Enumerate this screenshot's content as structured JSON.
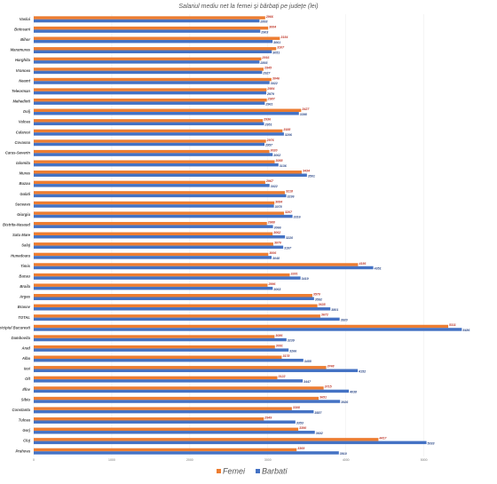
{
  "chart_data": {
    "type": "hbar",
    "title": "Salariul mediu net la femei și bărbați pe județe (lei)",
    "categories": [
      "Vaslui",
      "Botosani",
      "Bihor",
      "Maramures",
      "Harghita",
      "Vrancea",
      "Neamt",
      "Teleorman",
      "Mehedinti",
      "Dolj",
      "Valcea",
      "Calarasi",
      "Covasna",
      "Caras-Severin",
      "Ialomita",
      "Mures",
      "Buzau",
      "Galati",
      "Suceava",
      "Giurgiu",
      "Bistrita-Nasaud",
      "Satu Mare",
      "Salaj",
      "Hunedoara",
      "Timis",
      "Bacau",
      "Braila",
      "Arges",
      "Brasov",
      "TOTAL",
      "Municipiul Bucuresti",
      "Dambovita",
      "Arad",
      "Alba",
      "Iasi",
      "Olt",
      "Ilfov",
      "Sibiu",
      "Constanta",
      "Tulcea",
      "Gorj",
      "Cluj",
      "Prahova"
    ],
    "series": [
      {
        "name": "Femei",
        "color": "#ed7d31",
        "values": [
          2966,
          3004,
          3154,
          3107,
          2916,
          2945,
          3046,
          2984,
          2987,
          3427,
          2936,
          3188,
          2976,
          3020,
          3088,
          3434,
          2967,
          3218,
          3084,
          3207,
          2988,
          3062,
          3070,
          3006,
          4156,
          3281,
          2996,
          3570,
          3635,
          3672,
          5311,
          3086,
          3091,
          3178,
          3748,
          3122,
          3715,
          3651,
          3308,
          2949,
          3390,
          4417,
          3369
        ]
      },
      {
        "name": "Barbati",
        "color": "#4472c4",
        "values": [
          2893,
          2903,
          3061,
          3051,
          2893,
          2927,
          3022,
          2979,
          2961,
          3398,
          2951,
          3206,
          2957,
          3062,
          3136,
          3501,
          3022,
          3236,
          3078,
          3316,
          3066,
          3220,
          3197,
          3048,
          4351,
          3419,
          3063,
          3592,
          3801,
          3920,
          5486,
          3239,
          3266,
          3455,
          4152,
          3447,
          4038,
          3926,
          3587,
          3353,
          3602,
          5033,
          3910
        ]
      }
    ],
    "xlim": [
      0,
      5800
    ],
    "xticks": [
      0,
      1000,
      2000,
      3000,
      4000,
      5000
    ],
    "grid": true
  }
}
